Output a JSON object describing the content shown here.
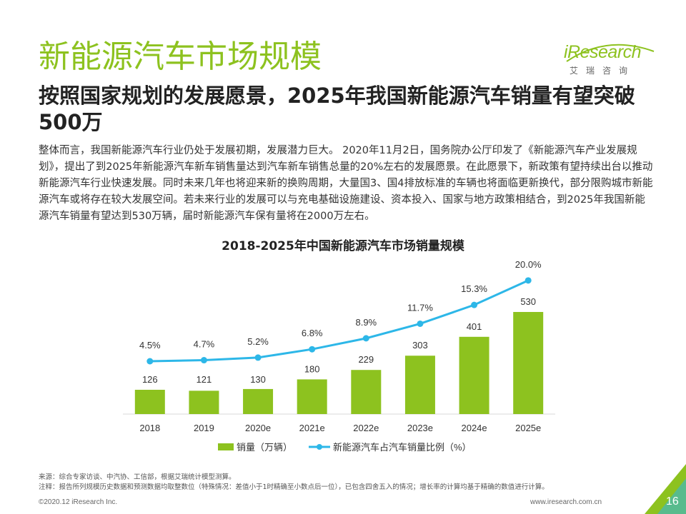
{
  "header": {
    "title": "新能源汽车市场规模",
    "subtitle": "按照国家规划的发展愿景，2025年我国新能源汽车销量有望突破500万",
    "paragraph": "整体而言，我国新能源汽车行业仍处于发展初期，发展潜力巨大。 2020年11月2日，国务院办公厅印发了《新能源汽车产业发展规划》，提出了到2025年新能源汽车新车销售量达到汽车新车销售总量的20%左右的发展愿景。在此愿景下，新政策有望持续出台以推动新能源汽车行业快速发展。同时未来几年也将迎来新的换购周期，大量国3、国4排放标准的车辆也将面临更新换代，部分限购城市新能源汽车或将存在较大发展空间。若未来行业的发展可以与充电基础设施建设、资本投入、国家与地方政策相结合，到2025年我国新能源汽车销量有望达到530万辆，届时新能源汽车保有量将在2000万左右。"
  },
  "logo": {
    "brand": "iResearch",
    "sub": "艾瑞咨询"
  },
  "colors": {
    "bar": "#8dc21f",
    "line": "#2db7e8",
    "accent": "#8dc21f",
    "text": "#222222"
  },
  "chart_data": {
    "type": "bar",
    "title": "2018-2025年中国新能源汽车市场销量规模",
    "categories": [
      "2018",
      "2019",
      "2020e",
      "2021e",
      "2022e",
      "2023e",
      "2024e",
      "2025e"
    ],
    "series": [
      {
        "name": "销量（万辆）",
        "type": "bar",
        "values": [
          126,
          121,
          130,
          180,
          229,
          303,
          401,
          530
        ],
        "labels": [
          "126",
          "121",
          "130",
          "180",
          "229",
          "303",
          "401",
          "530"
        ]
      },
      {
        "name": "新能源汽车占汽车销量比例（%）",
        "type": "line",
        "values": [
          4.5,
          4.7,
          5.2,
          6.8,
          8.9,
          11.7,
          15.3,
          20.0
        ],
        "labels": [
          "4.5%",
          "4.7%",
          "5.2%",
          "6.8%",
          "8.9%",
          "11.7%",
          "15.3%",
          "20.0%"
        ]
      }
    ],
    "legend_position": "bottom",
    "grid": false
  },
  "notes": {
    "source": "来源：综合专家访谈、中汽协、工信部，根据艾瑞统计模型测算。",
    "note": "注释：报告所列规模历史数据和预测数据均取整数位（特殊情况：差值小于1时精确至小数点后一位），已包含四舍五入的情况；增长率的计算均基于精确的数值进行计算。"
  },
  "footer": {
    "copyright": "©2020.12 iResearch Inc.",
    "url": "www.iresearch.com.cn",
    "page": "16"
  }
}
